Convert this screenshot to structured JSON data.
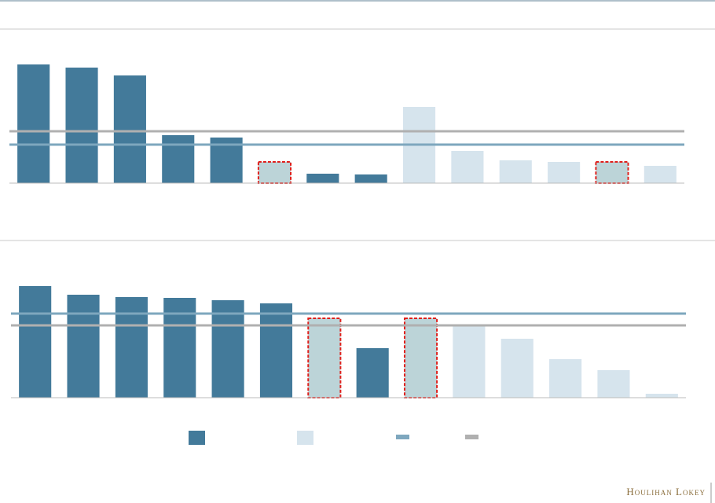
{
  "chart_data": [
    {
      "type": "bar",
      "values": [
        151,
        147,
        137,
        61,
        58,
        27,
        12,
        11,
        97,
        41,
        29,
        27,
        27,
        22
      ],
      "colors": [
        "#437a9a",
        "#437a9a",
        "#437a9a",
        "#437a9a",
        "#437a9a",
        "#bcd4d8",
        "#437a9a",
        "#437a9a",
        "#d6e4ed",
        "#d6e4ed",
        "#d6e4ed",
        "#d6e4ed",
        "#bcd4d8",
        "#d6e4ed"
      ],
      "highlight": [
        false,
        false,
        false,
        false,
        false,
        true,
        false,
        false,
        false,
        false,
        false,
        false,
        true,
        false
      ],
      "lines": [
        {
          "value": 66,
          "color": "#b0b0b0"
        },
        {
          "value": 49,
          "color": "#7ea7be"
        }
      ],
      "ylim": [
        0,
        200
      ]
    },
    {
      "type": "bar",
      "values": [
        142,
        131,
        128,
        127,
        124,
        120,
        101,
        63,
        101,
        93,
        75,
        49,
        35,
        5
      ],
      "colors": [
        "#437a9a",
        "#437a9a",
        "#437a9a",
        "#437a9a",
        "#437a9a",
        "#437a9a",
        "#bcd4d8",
        "#437a9a",
        "#bcd4d8",
        "#d6e4ed",
        "#d6e4ed",
        "#d6e4ed",
        "#d6e4ed",
        "#d6e4ed"
      ],
      "highlight": [
        false,
        false,
        false,
        false,
        false,
        false,
        true,
        false,
        true,
        false,
        false,
        false,
        false,
        false
      ],
      "lines": [
        {
          "value": 107,
          "color": "#7ea7be"
        },
        {
          "value": 92,
          "color": "#b0b0b0"
        }
      ],
      "ylim": [
        0,
        200
      ]
    }
  ],
  "footer": {
    "brand": "Houlihan Lokey"
  }
}
